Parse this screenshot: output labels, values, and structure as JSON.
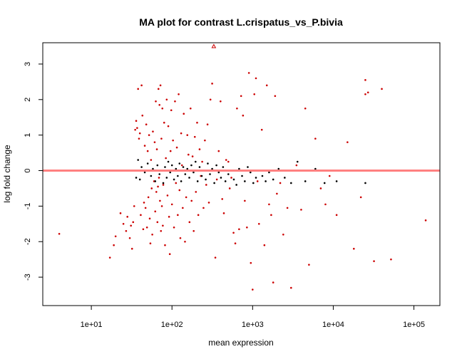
{
  "chart_data": {
    "type": "scatter",
    "title": "MA plot for contrast L.crispatus_vs_P.bivia",
    "xlabel": "mean expression",
    "ylabel": "log fold change",
    "x_scale": "log10",
    "xlim": [
      2.5,
      210000
    ],
    "ylim": [
      -3.8,
      3.6
    ],
    "x_ticks": [
      {
        "value": 10,
        "label": "1e+01"
      },
      {
        "value": 100,
        "label": "1e+02"
      },
      {
        "value": 1000,
        "label": "1e+03"
      },
      {
        "value": 10000,
        "label": "1e+04"
      },
      {
        "value": 100000,
        "label": "1e+05"
      }
    ],
    "y_ticks": [
      -3,
      -2,
      -1,
      0,
      1,
      2,
      3
    ],
    "reference_line": {
      "y": 0,
      "color": "#ff8080"
    },
    "grid": false,
    "colors": {
      "significant": "#cc0000",
      "not_significant": "#000000"
    },
    "series": [
      {
        "name": "",
        "color": "#cc0000",
        "points": [
          [
            4,
            -1.78
          ],
          [
            17,
            -2.45
          ],
          [
            19,
            -2.1
          ],
          [
            20,
            -1.85
          ],
          [
            23,
            -1.2
          ],
          [
            25,
            -1.5
          ],
          [
            27,
            -1.7
          ],
          [
            28,
            -1.3
          ],
          [
            30,
            -1.9
          ],
          [
            31,
            -1.55
          ],
          [
            32,
            -2.2
          ],
          [
            33,
            -1.45
          ],
          [
            34,
            -1.0
          ],
          [
            35,
            1.15
          ],
          [
            36,
            1.4
          ],
          [
            37,
            1.2
          ],
          [
            38,
            2.3
          ],
          [
            39,
            0.9
          ],
          [
            40,
            1.05
          ],
          [
            41,
            -1.25
          ],
          [
            42,
            2.4
          ],
          [
            43,
            1.55
          ],
          [
            44,
            -1.65
          ],
          [
            45,
            -0.9
          ],
          [
            46,
            0.7
          ],
          [
            47,
            -1.05
          ],
          [
            48,
            1.3
          ],
          [
            49,
            -1.6
          ],
          [
            50,
            0.55
          ],
          [
            51,
            -0.75
          ],
          [
            52,
            1.0
          ],
          [
            53,
            -1.35
          ],
          [
            54,
            -2.05
          ],
          [
            55,
            0.3
          ],
          [
            56,
            -0.5
          ],
          [
            57,
            -1.8
          ],
          [
            58,
            1.1
          ],
          [
            60,
            -0.3
          ],
          [
            61,
            0.8
          ],
          [
            62,
            -1.15
          ],
          [
            63,
            1.95
          ],
          [
            64,
            -0.6
          ],
          [
            65,
            0.6
          ],
          [
            66,
            -1.45
          ],
          [
            67,
            -0.45
          ],
          [
            68,
            2.3
          ],
          [
            69,
            -0.2
          ],
          [
            70,
            1.85
          ],
          [
            71,
            -0.85
          ],
          [
            72,
            2.4
          ],
          [
            73,
            -1.7
          ],
          [
            74,
            0.9
          ],
          [
            75,
            -1.0
          ],
          [
            76,
            1.75
          ],
          [
            77,
            -1.55
          ],
          [
            78,
            -0.4
          ],
          [
            80,
            1.35
          ],
          [
            82,
            -2.1
          ],
          [
            84,
            0.35
          ],
          [
            86,
            2.0
          ],
          [
            88,
            -0.7
          ],
          [
            90,
            1.25
          ],
          [
            92,
            -1.3
          ],
          [
            94,
            -2.35
          ],
          [
            96,
            0.55
          ],
          [
            98,
            1.7
          ],
          [
            100,
            -0.95
          ],
          [
            103,
            0.85
          ],
          [
            106,
            -1.6
          ],
          [
            109,
            1.95
          ],
          [
            112,
            -0.35
          ],
          [
            115,
            0.65
          ],
          [
            118,
            -1.25
          ],
          [
            121,
            2.15
          ],
          [
            124,
            -0.55
          ],
          [
            127,
            -1.9
          ],
          [
            130,
            1.05
          ],
          [
            133,
            0.15
          ],
          [
            136,
            -1.05
          ],
          [
            140,
            1.6
          ],
          [
            145,
            -2.0
          ],
          [
            150,
            -0.75
          ],
          [
            155,
            1.0
          ],
          [
            160,
            0.45
          ],
          [
            165,
            -1.45
          ],
          [
            170,
            1.75
          ],
          [
            175,
            -0.85
          ],
          [
            180,
            0.4
          ],
          [
            186,
            -1.7
          ],
          [
            192,
            0.95
          ],
          [
            198,
            -0.6
          ],
          [
            205,
            1.35
          ],
          [
            212,
            -1.25
          ],
          [
            220,
            0.6
          ],
          [
            228,
            -0.15
          ],
          [
            237,
            0.25
          ],
          [
            246,
            -1.05
          ],
          [
            256,
            0.85
          ],
          [
            266,
            -0.4
          ],
          [
            276,
            1.3
          ],
          [
            287,
            -0.9
          ],
          [
            300,
            2.0
          ],
          [
            315,
            2.45
          ],
          [
            330,
            3.5
          ],
          [
            345,
            -2.45
          ],
          [
            360,
            -0.25
          ],
          [
            380,
            0.55
          ],
          [
            400,
            1.95
          ],
          [
            420,
            -0.8
          ],
          [
            440,
            -1.2
          ],
          [
            470,
            0.3
          ],
          [
            500,
            0.25
          ],
          [
            520,
            -0.5
          ],
          [
            545,
            -0.2
          ],
          [
            580,
            -1.75
          ],
          [
            610,
            -2.05
          ],
          [
            640,
            1.75
          ],
          [
            680,
            -1.65
          ],
          [
            720,
            2.1
          ],
          [
            760,
            1.55
          ],
          [
            800,
            -0.85
          ],
          [
            850,
            -1.6
          ],
          [
            900,
            2.75
          ],
          [
            950,
            -2.6
          ],
          [
            1000,
            -3.35
          ],
          [
            1050,
            2.15
          ],
          [
            1100,
            2.6
          ],
          [
            1150,
            -0.3
          ],
          [
            1200,
            -1.5
          ],
          [
            1300,
            1.15
          ],
          [
            1400,
            -2.1
          ],
          [
            1500,
            2.4
          ],
          [
            1600,
            -0.95
          ],
          [
            1700,
            -1.25
          ],
          [
            1800,
            -3.15
          ],
          [
            1900,
            2.1
          ],
          [
            2000,
            -0.65
          ],
          [
            2200,
            -0.35
          ],
          [
            2400,
            -1.8
          ],
          [
            2700,
            -1.05
          ],
          [
            3000,
            -3.3
          ],
          [
            3500,
            0.15
          ],
          [
            4000,
            -1.1
          ],
          [
            4500,
            1.75
          ],
          [
            5000,
            -2.65
          ],
          [
            6000,
            0.9
          ],
          [
            7000,
            -0.5
          ],
          [
            8000,
            -0.95
          ],
          [
            9000,
            -0.15
          ],
          [
            11000,
            -1.25
          ],
          [
            15000,
            0.8
          ],
          [
            18000,
            -2.2
          ],
          [
            22000,
            -0.75
          ],
          [
            25000,
            2.55
          ],
          [
            27000,
            2.2
          ],
          [
            32000,
            -2.55
          ],
          [
            40000,
            2.3
          ],
          [
            52000,
            -2.5
          ],
          [
            140000,
            -1.4
          ],
          [
            25000,
            2.15
          ]
        ]
      },
      {
        "name": "",
        "color": "#000000",
        "points": [
          [
            36,
            -0.2
          ],
          [
            38,
            0.3
          ],
          [
            40,
            -0.25
          ],
          [
            42,
            0.1
          ],
          [
            46,
            -0.05
          ],
          [
            50,
            0.2
          ],
          [
            55,
            -0.15
          ],
          [
            58,
            0.05
          ],
          [
            62,
            -0.3
          ],
          [
            66,
            0.15
          ],
          [
            70,
            -0.1
          ],
          [
            74,
            0.0
          ],
          [
            78,
            -0.35
          ],
          [
            82,
            0.1
          ],
          [
            86,
            -0.2
          ],
          [
            90,
            0.25
          ],
          [
            95,
            -0.05
          ],
          [
            100,
            0.15
          ],
          [
            106,
            -0.25
          ],
          [
            112,
            0.05
          ],
          [
            118,
            -0.15
          ],
          [
            124,
            0.2
          ],
          [
            130,
            -0.3
          ],
          [
            138,
            0.1
          ],
          [
            146,
            -0.1
          ],
          [
            155,
            0.05
          ],
          [
            164,
            -0.2
          ],
          [
            174,
            0.15
          ],
          [
            185,
            -0.05
          ],
          [
            196,
            0.25
          ],
          [
            208,
            -0.3
          ],
          [
            220,
            0.1
          ],
          [
            234,
            -0.15
          ],
          [
            248,
            0.0
          ],
          [
            262,
            -0.25
          ],
          [
            278,
            0.2
          ],
          [
            296,
            -0.1
          ],
          [
            315,
            0.05
          ],
          [
            335,
            -0.35
          ],
          [
            356,
            0.15
          ],
          [
            380,
            -0.05
          ],
          [
            405,
            -0.2
          ],
          [
            430,
            0.1
          ],
          [
            460,
            -0.3
          ],
          [
            500,
            -0.1
          ],
          [
            540,
            0.0
          ],
          [
            585,
            -0.25
          ],
          [
            630,
            -0.4
          ],
          [
            680,
            0.05
          ],
          [
            740,
            -0.15
          ],
          [
            800,
            -0.3
          ],
          [
            870,
            0.1
          ],
          [
            940,
            -0.05
          ],
          [
            1020,
            -0.35
          ],
          [
            1100,
            -0.2
          ],
          [
            1200,
            0.0
          ],
          [
            1320,
            -0.15
          ],
          [
            1450,
            -0.3
          ],
          [
            1600,
            -0.05
          ],
          [
            1800,
            -0.25
          ],
          [
            2100,
            0.05
          ],
          [
            2500,
            -0.2
          ],
          [
            3000,
            -0.35
          ],
          [
            3600,
            0.25
          ],
          [
            4500,
            -0.3
          ],
          [
            6000,
            0.05
          ],
          [
            7800,
            -0.35
          ],
          [
            11000,
            -0.3
          ],
          [
            25000,
            -0.35
          ]
        ]
      }
    ]
  }
}
